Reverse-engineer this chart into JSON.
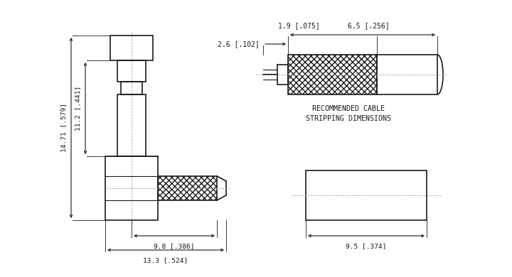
{
  "bg_color": "#ffffff",
  "line_color": "#1a1a1a",
  "font_size_dim": 7.0,
  "annotations": {
    "dim_14_71_label": "14.71 [.579]",
    "dim_11_2_label": "11.2 [.441]",
    "dim_9_8_label": "9.8 [.386]",
    "dim_13_3_label": "13.3 [.524]",
    "dim_1_9_label": "1.9 [.075]",
    "dim_2_6_label": "2.6 [.102]",
    "dim_6_5_label": "6.5 [.256]",
    "dim_9_5_label": "9.5 [.374]",
    "rec_cable_line1": "RECOMMENDED CABLE",
    "rec_cable_line2": "STRIPPING DIMENSIONS"
  }
}
